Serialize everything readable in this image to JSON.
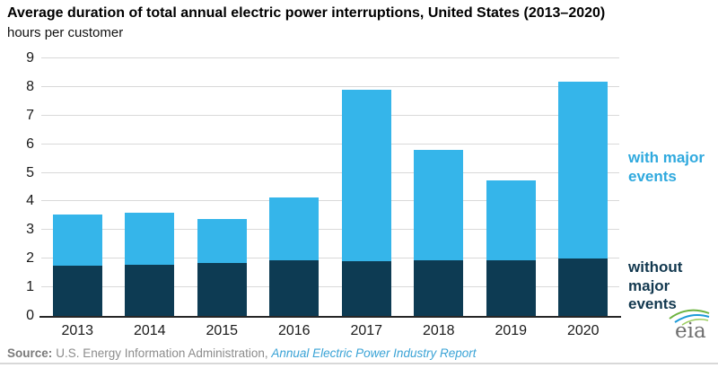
{
  "header": {
    "title": "Average duration of total annual electric power interruptions, United States (2013–2020)",
    "subtitle": "hours per customer"
  },
  "chart_data": {
    "type": "bar",
    "stacked": true,
    "title": "Average duration of total annual electric power interruptions, United States (2013–2020)",
    "ylabel": "hours per customer",
    "xlabel": "",
    "categories": [
      "2013",
      "2014",
      "2015",
      "2016",
      "2017",
      "2018",
      "2019",
      "2020"
    ],
    "series": [
      {
        "name": "without major events",
        "color": "#0d3b53",
        "values": [
          1.75,
          1.8,
          1.85,
          1.95,
          1.9,
          1.95,
          1.95,
          2.0
        ]
      },
      {
        "name": "with major events",
        "color": "#35b5ea",
        "values": [
          1.8,
          1.8,
          1.55,
          2.2,
          6.0,
          3.85,
          2.8,
          6.2
        ]
      }
    ],
    "totals": [
      3.55,
      3.6,
      3.4,
      4.15,
      7.9,
      5.8,
      4.75,
      8.2
    ],
    "ylim": [
      0,
      9
    ],
    "yticks": [
      0,
      1,
      2,
      3,
      4,
      5,
      6,
      7,
      8,
      9
    ],
    "grid": true,
    "legend_position": "right"
  },
  "source": {
    "label": "Source:",
    "text": "U.S. Energy Information Administration, ",
    "link": "Annual Electric Power Industry Report"
  },
  "logo": {
    "text": "eia"
  },
  "colors": {
    "with_major_events": "#35b5ea",
    "without_major_events": "#0d3b53",
    "gridline": "#d9d9d9",
    "axis": "#262626",
    "source_link": "#3aa3d6"
  }
}
